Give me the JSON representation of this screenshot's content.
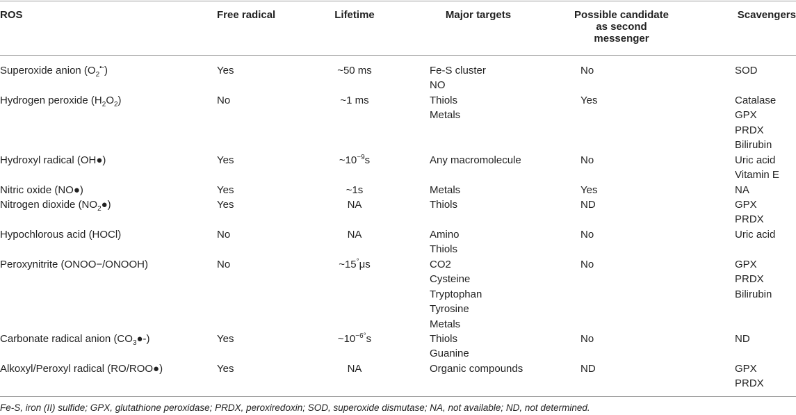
{
  "headers": {
    "ros": "ROS",
    "free_radical": "Free radical",
    "lifetime": "Lifetime",
    "major_targets": "Major targets",
    "second_messenger": [
      "Possible candidate",
      "as second",
      "messenger"
    ],
    "scavengers": "Scavengers"
  },
  "rows": [
    {
      "ros": [
        "Superoxide anion (O",
        "2",
        "•-",
        ")"
      ],
      "free": "Yes",
      "life": [
        "~50 ms"
      ],
      "targets": [
        "Fe-S cluster",
        "NO"
      ],
      "second": "No",
      "scav": [
        "SOD"
      ]
    },
    {
      "ros": [
        "Hydrogen peroxide (H",
        "2",
        "O",
        "2",
        ")"
      ],
      "free": "No",
      "life": [
        "~1 ms"
      ],
      "targets": [
        "Thiols",
        "Metals"
      ],
      "second": "Yes",
      "scav": [
        "Catalase",
        "GPX",
        "PRDX",
        "Bilirubin"
      ]
    },
    {
      "ros": [
        "Hydroxyl radical (OH●)"
      ],
      "free": "Yes",
      "life": [
        "~10",
        "−9",
        "s"
      ],
      "targets": [
        "Any macromolecule"
      ],
      "second": "No",
      "scav": [
        "Uric acid",
        "Vitamin E"
      ]
    },
    {
      "ros": [
        "Nitric oxide (NO●)"
      ],
      "free": "Yes",
      "life": [
        "~1s"
      ],
      "targets": [
        "Metals"
      ],
      "second": "Yes",
      "scav": [
        "NA"
      ]
    },
    {
      "ros": [
        "Nitrogen dioxide (NO",
        "2",
        "●)"
      ],
      "free": "Yes",
      "life": [
        "NA"
      ],
      "targets": [
        "Thiols"
      ],
      "second": "ND",
      "scav": [
        "GPX",
        "PRDX"
      ]
    },
    {
      "ros": [
        "Hypochlorous acid (HOCl)"
      ],
      "free": "No",
      "life": [
        "NA"
      ],
      "targets": [
        "Amino",
        "Thiols"
      ],
      "second": "No",
      "scav": [
        "Uric acid"
      ]
    },
    {
      "ros": [
        "Peroxynitrite (ONOO−/ONOOH)"
      ],
      "free": "No",
      "life": [
        "~15",
        "°",
        "μs"
      ],
      "targets": [
        "CO2",
        "Cysteine",
        "Tryptophan",
        "Tyrosine",
        "Metals"
      ],
      "second": "No",
      "scav": [
        "GPX",
        "PRDX",
        "Bilirubin"
      ]
    },
    {
      "ros": [
        "Carbonate radical anion (CO",
        "3",
        "●-)"
      ],
      "free": "Yes",
      "life": [
        "~10",
        "−6°",
        "s"
      ],
      "targets": [
        "Thiols",
        "Guanine"
      ],
      "second": "No",
      "scav": [
        "ND"
      ]
    },
    {
      "ros": [
        "Alkoxyl/Peroxyl radical (RO/ROO●)"
      ],
      "free": "Yes",
      "life": [
        "NA"
      ],
      "targets": [
        "Organic compounds"
      ],
      "second": "ND",
      "scav": [
        "GPX",
        "PRDX"
      ]
    }
  ],
  "footnote": "Fe-S, iron (II) sulfide; GPX, glutathione peroxidase; PRDX, peroxiredoxin; SOD, superoxide dismutase; NA, not available; ND, not determined."
}
